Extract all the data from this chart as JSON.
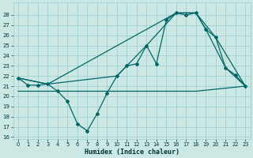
{
  "xlabel": "Humidex (Indice chaleur)",
  "background_color": "#cce8e4",
  "line_color": "#006666",
  "grid_color": "#99cccc",
  "xlim": [
    -0.5,
    23.5
  ],
  "ylim": [
    15.8,
    29.2
  ],
  "yticks": [
    16,
    17,
    18,
    19,
    20,
    21,
    22,
    23,
    24,
    25,
    26,
    27,
    28
  ],
  "xticks": [
    0,
    1,
    2,
    3,
    4,
    5,
    6,
    7,
    8,
    9,
    10,
    11,
    12,
    13,
    14,
    15,
    16,
    17,
    18,
    19,
    20,
    21,
    22,
    23
  ],
  "series_main": {
    "x": [
      0,
      1,
      2,
      3,
      4,
      5,
      6,
      7,
      8,
      9,
      10,
      11,
      12,
      13,
      14,
      15,
      16,
      17,
      18,
      19,
      20,
      21,
      22,
      23
    ],
    "y": [
      21.8,
      21.1,
      21.1,
      21.2,
      20.5,
      19.5,
      17.3,
      16.6,
      18.3,
      20.3,
      22.0,
      23.0,
      23.2,
      25.0,
      23.2,
      27.5,
      28.2,
      28.0,
      28.2,
      26.6,
      25.8,
      22.8,
      22.1,
      21.0
    ]
  },
  "series_line1": {
    "x": [
      0,
      3,
      10,
      13,
      16,
      18,
      19,
      21,
      23
    ],
    "y": [
      21.8,
      21.2,
      22.0,
      25.0,
      28.2,
      28.2,
      26.6,
      22.8,
      21.0
    ]
  },
  "series_line2": {
    "x": [
      0,
      3,
      16,
      18,
      20,
      23
    ],
    "y": [
      21.8,
      21.2,
      28.2,
      28.2,
      25.8,
      21.0
    ]
  },
  "series_line3": {
    "x": [
      0,
      4,
      18,
      23
    ],
    "y": [
      20.5,
      20.5,
      20.5,
      21.0
    ]
  }
}
